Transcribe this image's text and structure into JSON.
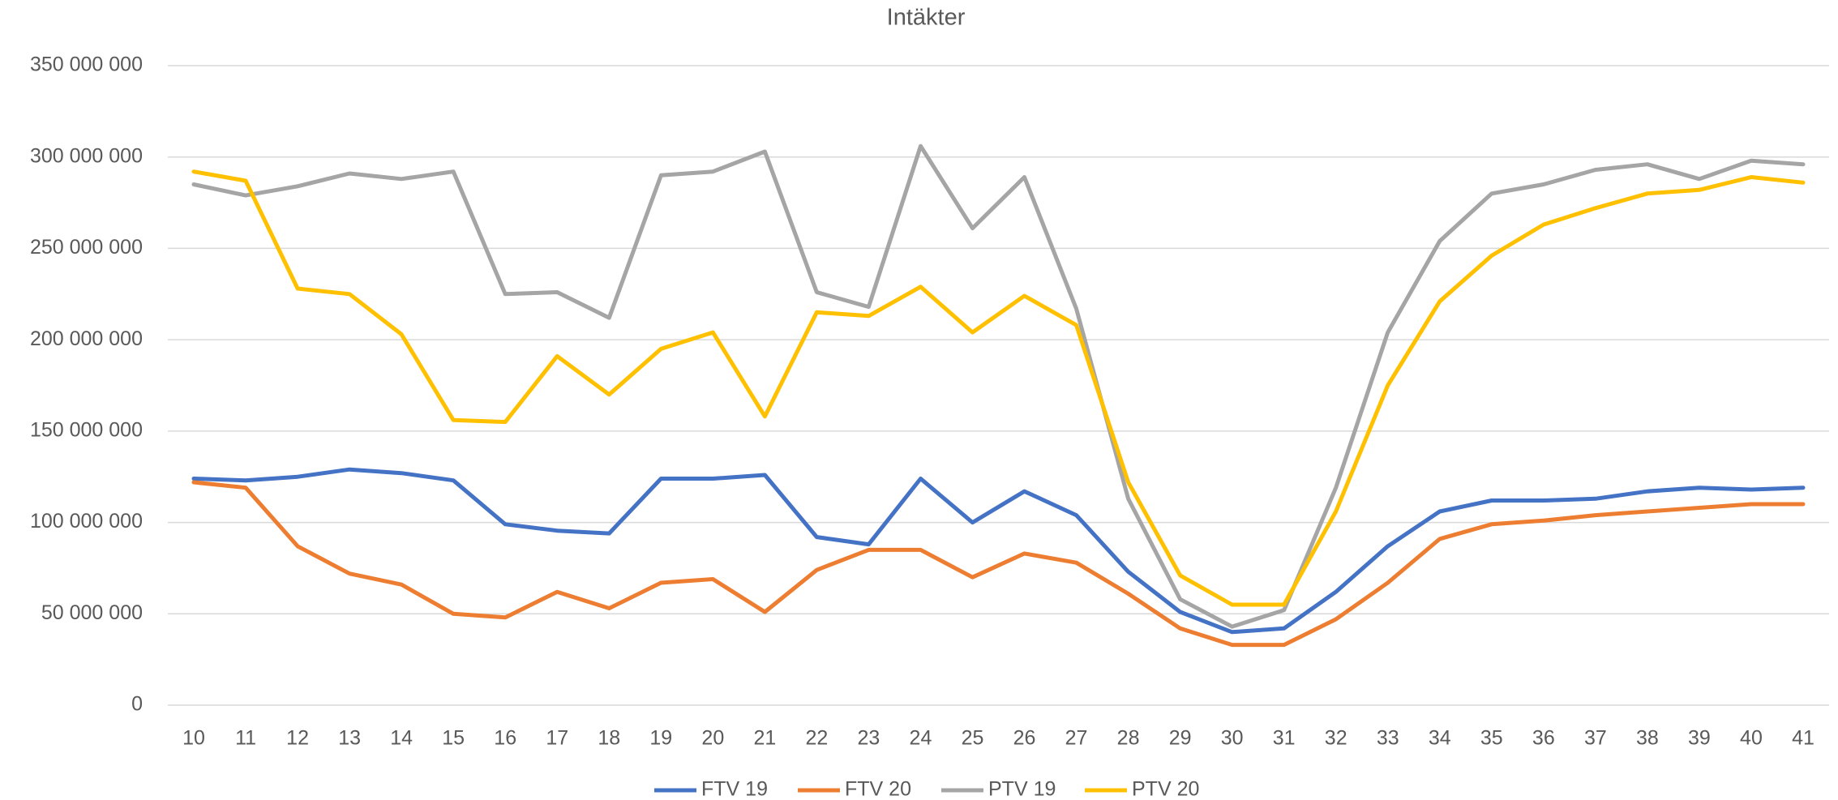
{
  "chart_data": {
    "type": "line",
    "title": "Intäkter",
    "categories": [
      "10",
      "11",
      "12",
      "13",
      "14",
      "15",
      "16",
      "17",
      "18",
      "19",
      "20",
      "21",
      "22",
      "23",
      "24",
      "25",
      "26",
      "27",
      "28",
      "29",
      "30",
      "31",
      "32",
      "33",
      "34",
      "35",
      "36",
      "37",
      "38",
      "39",
      "40",
      "41"
    ],
    "series": [
      {
        "name": "FTV 19",
        "color": "#4472c4",
        "values": [
          124000000,
          123000000,
          125000000,
          129000000,
          127000000,
          123000000,
          99000000,
          95500000,
          94000000,
          124000000,
          124000000,
          126000000,
          92000000,
          88000000,
          124000000,
          100000000,
          117000000,
          104000000,
          73000000,
          51000000,
          40000000,
          42000000,
          62000000,
          87000000,
          106000000,
          112000000,
          112000000,
          113000000,
          117000000,
          119000000,
          118000000,
          119000000
        ]
      },
      {
        "name": "FTV 20",
        "color": "#ed7d31",
        "values": [
          122000000,
          119000000,
          87000000,
          72000000,
          66000000,
          50000000,
          48000000,
          62000000,
          53000000,
          67000000,
          69000000,
          51000000,
          74000000,
          85000000,
          85000000,
          70000000,
          83000000,
          78000000,
          61000000,
          42000000,
          33000000,
          33000000,
          47000000,
          67000000,
          91000000,
          99000000,
          101000000,
          104000000,
          106000000,
          108000000,
          110000000,
          110000000
        ]
      },
      {
        "name": "PTV 19",
        "color": "#a5a5a5",
        "values": [
          285000000,
          279000000,
          284000000,
          291000000,
          288000000,
          292000000,
          225000000,
          226000000,
          212000000,
          290000000,
          292000000,
          303000000,
          226000000,
          218000000,
          306000000,
          261000000,
          289000000,
          217000000,
          113000000,
          58000000,
          43000000,
          52000000,
          119000000,
          204000000,
          254000000,
          280000000,
          285000000,
          293000000,
          296000000,
          288000000,
          298000000,
          296000000
        ]
      },
      {
        "name": "PTV 20",
        "color": "#ffc000",
        "values": [
          292000000,
          287000000,
          228000000,
          225000000,
          203000000,
          156000000,
          155000000,
          191000000,
          170000000,
          195000000,
          204000000,
          158000000,
          215000000,
          213000000,
          229000000,
          204000000,
          224000000,
          208000000,
          122000000,
          71000000,
          55000000,
          55000000,
          106000000,
          175000000,
          221000000,
          246000000,
          263000000,
          272000000,
          280000000,
          282000000,
          289000000,
          286000000
        ]
      }
    ],
    "ylim": [
      0,
      350000000
    ],
    "yticks": [
      0,
      {
        "value": 50000000,
        "label": "50 000 000"
      },
      {
        "value": 100000000,
        "label": "100 000 000"
      },
      {
        "value": 150000000,
        "label": "150 000 000"
      },
      {
        "value": 200000000,
        "label": "200 000 000"
      },
      {
        "value": 250000000,
        "label": "250 000 000"
      },
      {
        "value": 300000000,
        "label": "300 000 000"
      },
      {
        "value": 350000000,
        "label": "350 000 000"
      }
    ],
    "grid": true,
    "legend": "bottom"
  }
}
